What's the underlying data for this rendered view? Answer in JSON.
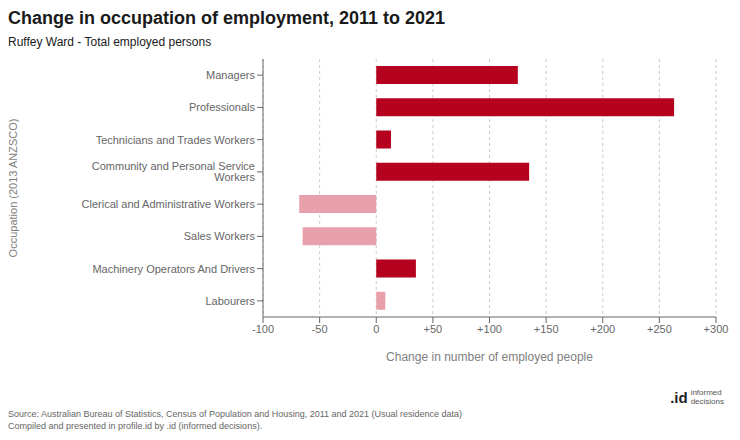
{
  "chart_data": {
    "type": "bar",
    "orientation": "horizontal",
    "title": "Change in occupation of employment, 2011 to 2021",
    "subtitle": "Ruffey Ward - Total employed persons",
    "categories": [
      "Managers",
      "Professionals",
      "Technicians and Trades Workers",
      "Community and Personal Service Workers",
      "Clerical and Administrative Workers",
      "Sales Workers",
      "Machinery Operators And Drivers",
      "Labourers"
    ],
    "values": [
      125,
      263,
      13,
      135,
      -68,
      -65,
      35,
      8
    ],
    "colors": [
      "#b5001e",
      "#b5001e",
      "#b5001e",
      "#b5001e",
      "#e8a0aa",
      "#e8a0aa",
      "#b5001e",
      "#e8a0aa"
    ],
    "xlabel": "Change in number of employed people",
    "ylabel": "Occupation (2013 ANZSCO)",
    "xlim": [
      -100,
      300
    ],
    "xticks": [
      -100,
      -50,
      0,
      {
        "value": 50,
        "label": "+50"
      },
      {
        "value": 100,
        "label": "+100"
      },
      {
        "value": 150,
        "label": "+150"
      },
      {
        "value": 200,
        "label": "+200"
      },
      {
        "value": 250,
        "label": "+250"
      },
      {
        "value": 300,
        "label": "+300"
      }
    ],
    "grid": true,
    "annotations": [
      "Source: Australian Bureau of Statistics, Census of Population and Housing, 2011 and 2021 (Usual residence data)",
      "Compiled and presented in profile.id by .id (informed decisions).",
      ".id",
      "informed\ndecisions"
    ]
  }
}
